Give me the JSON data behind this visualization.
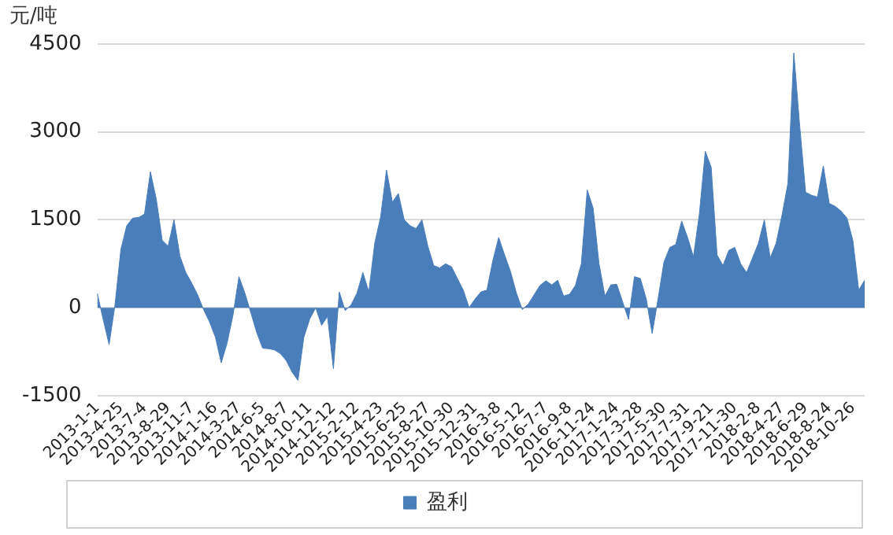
{
  "chart_data": {
    "type": "area",
    "ylabel": "元/吨",
    "categories": [
      "2013-1-1",
      null,
      null,
      null,
      "2013-4-25",
      null,
      null,
      null,
      "2013-7-4",
      null,
      null,
      null,
      "2013-8-29",
      null,
      null,
      null,
      "2013-11-7",
      null,
      null,
      null,
      "2014-1-16",
      null,
      null,
      null,
      "2014-3-27",
      null,
      null,
      null,
      "2014-6-5",
      null,
      null,
      null,
      "2014-8-7",
      null,
      null,
      null,
      "2014-10-11",
      null,
      null,
      null,
      "2014-12-12",
      null,
      null,
      null,
      "2015-2-12",
      null,
      null,
      null,
      "2015-4-23",
      null,
      null,
      null,
      "2015-6-25",
      null,
      null,
      null,
      "2015-8-27",
      null,
      null,
      null,
      "2015-10-30",
      null,
      null,
      null,
      "2015-12-31",
      null,
      null,
      null,
      "2016-3-8",
      null,
      null,
      null,
      "2016-5-12",
      null,
      null,
      null,
      "2016-7-7",
      null,
      null,
      null,
      "2016-9-8",
      null,
      null,
      null,
      "2016-11-24",
      null,
      null,
      null,
      "2017-1-24",
      null,
      null,
      null,
      "2017-3-28",
      null,
      null,
      null,
      "2017-5-30",
      null,
      null,
      null,
      "2017-7-31",
      null,
      null,
      null,
      "2017-9-21",
      null,
      null,
      null,
      "2017-11-30",
      null,
      null,
      null,
      "2018-2-8",
      null,
      null,
      null,
      "2018-4-27",
      null,
      null,
      null,
      "2018-6-29",
      null,
      null,
      null,
      "2018-8-24",
      null,
      null,
      null,
      "2018-10-26",
      null,
      null
    ],
    "series": [
      {
        "name": "盈利",
        "color": "#4a7ebb",
        "values": [
          240,
          -200,
          -630,
          50,
          1000,
          1400,
          1530,
          1540,
          1600,
          2320,
          1850,
          1150,
          1050,
          1500,
          880,
          600,
          420,
          220,
          -30,
          -240,
          -500,
          -940,
          -600,
          -120,
          530,
          250,
          -80,
          -420,
          -690,
          -700,
          -720,
          -780,
          -900,
          -1100,
          -1240,
          -500,
          -190,
          0,
          -300,
          -150,
          -1040,
          270,
          -50,
          50,
          250,
          600,
          270,
          1100,
          1550,
          2350,
          1800,
          1950,
          1500,
          1400,
          1350,
          1500,
          1050,
          720,
          680,
          750,
          700,
          500,
          300,
          0,
          150,
          270,
          300,
          800,
          1200,
          900,
          620,
          250,
          -30,
          60,
          220,
          380,
          460,
          390,
          470,
          200,
          230,
          380,
          750,
          2010,
          1700,
          750,
          200,
          390,
          400,
          100,
          -200,
          530,
          500,
          150,
          -440,
          150,
          780,
          1030,
          1080,
          1480,
          1200,
          870,
          1600,
          2670,
          2400,
          900,
          720,
          980,
          1030,
          750,
          600,
          850,
          1100,
          1500,
          850,
          1100,
          1580,
          2120,
          4350,
          3100,
          1970,
          1920,
          1890,
          2420,
          1780,
          1730,
          1650,
          1530,
          1150,
          300,
          470
        ]
      }
    ],
    "ylim": [
      -1500,
      4500
    ],
    "yticks": [
      -1500,
      0,
      1500,
      3000,
      4500
    ],
    "grid": "y",
    "legend": "bottom"
  }
}
